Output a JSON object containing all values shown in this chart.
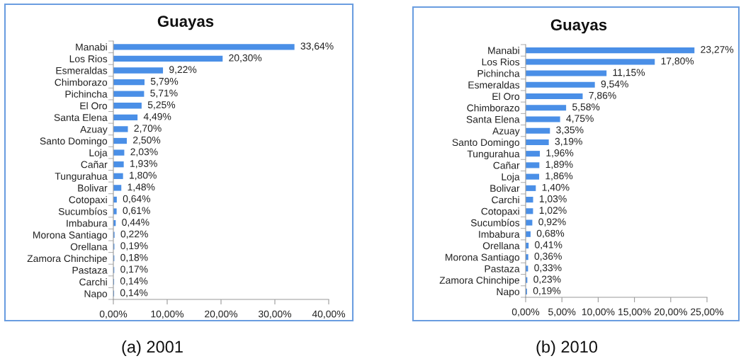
{
  "chart_data": [
    {
      "type": "bar",
      "orientation": "horizontal",
      "title": "Guayas",
      "color": "#4a8fe7",
      "categories": [
        "Manabi",
        "Los Rios",
        "Esmeraldas",
        "Chimborazo",
        "Pichincha",
        "El Oro",
        "Santa Elena",
        "Azuay",
        "Santo Domingo",
        "Loja",
        "Cañar",
        "Tungurahua",
        "Bolivar",
        "Cotopaxi",
        "Sucumbíos",
        "Imbabura",
        "Morona Santiago",
        "Orellana",
        "Zamora Chinchipe",
        "Pastaza",
        "Carchi",
        "Napo"
      ],
      "values": [
        33.64,
        20.3,
        9.22,
        5.79,
        5.71,
        5.25,
        4.49,
        2.7,
        2.5,
        2.03,
        1.93,
        1.8,
        1.48,
        0.64,
        0.61,
        0.44,
        0.22,
        0.19,
        0.18,
        0.17,
        0.14,
        0.14
      ],
      "value_labels": [
        "33,64%",
        "20,30%",
        "9,22%",
        "5,79%",
        "5,71%",
        "5,25%",
        "4,49%",
        "2,70%",
        "2,50%",
        "2,03%",
        "1,93%",
        "1,80%",
        "1,48%",
        "0,64%",
        "0,61%",
        "0,44%",
        "0,22%",
        "0,19%",
        "0,18%",
        "0,17%",
        "0,14%",
        "0,14%"
      ],
      "xlim": [
        0,
        40
      ],
      "xticks": [
        {
          "value": 0,
          "label": "0,00%"
        },
        {
          "value": 10,
          "label": "10,00%"
        },
        {
          "value": 20,
          "label": "20,00%"
        },
        {
          "value": 30,
          "label": "30,00%"
        },
        {
          "value": 40,
          "label": "40,00%"
        }
      ],
      "annotations": [
        "(a) 2001"
      ]
    },
    {
      "type": "bar",
      "orientation": "horizontal",
      "title": "Guayas",
      "color": "#4a8fe7",
      "categories": [
        "Manabi",
        "Los Rios",
        "Pichincha",
        "Esmeraldas",
        "El Oro",
        "Chimborazo",
        "Santa Elena",
        "Azuay",
        "Santo Domingo",
        "Tungurahua",
        "Cañar",
        "Loja",
        "Bolivar",
        "Carchi",
        "Cotopaxi",
        "Sucumbíos",
        "Imbabura",
        "Orellana",
        "Morona Santiago",
        "Pastaza",
        "Zamora Chinchipe",
        "Napo"
      ],
      "values": [
        23.27,
        17.8,
        11.15,
        9.54,
        7.86,
        5.58,
        4.75,
        3.35,
        3.19,
        1.96,
        1.89,
        1.86,
        1.4,
        1.03,
        1.02,
        0.92,
        0.68,
        0.41,
        0.36,
        0.33,
        0.23,
        0.19
      ],
      "value_labels": [
        "23,27%",
        "17,80%",
        "11,15%",
        "9,54%",
        "7,86%",
        "5,58%",
        "4,75%",
        "3,35%",
        "3,19%",
        "1,96%",
        "1,89%",
        "1,86%",
        "1,40%",
        "1,03%",
        "1,02%",
        "0,92%",
        "0,68%",
        "0,41%",
        "0,36%",
        "0,33%",
        "0,23%",
        "0,19%"
      ],
      "xlim": [
        0,
        25
      ],
      "xticks": [
        {
          "value": 0,
          "label": "0,00%"
        },
        {
          "value": 5,
          "label": "5,00%"
        },
        {
          "value": 10,
          "label": "10,00%"
        },
        {
          "value": 15,
          "label": "15,00%"
        },
        {
          "value": 20,
          "label": "20,00%"
        },
        {
          "value": 25,
          "label": "25,00%"
        }
      ],
      "annotations": [
        "(b) 2010"
      ]
    }
  ]
}
